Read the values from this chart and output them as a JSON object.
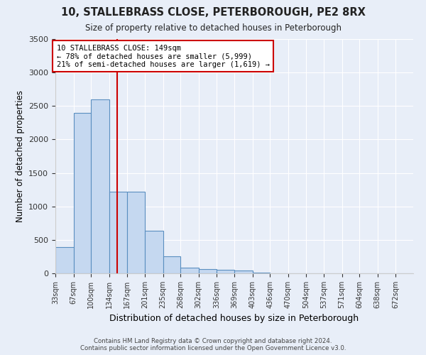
{
  "title": "10, STALLEBRASS CLOSE, PETERBOROUGH, PE2 8RX",
  "subtitle": "Size of property relative to detached houses in Peterborough",
  "xlabel": "Distribution of detached houses by size in Peterborough",
  "ylabel": "Number of detached properties",
  "footer_line1": "Contains HM Land Registry data © Crown copyright and database right 2024.",
  "footer_line2": "Contains public sector information licensed under the Open Government Licence v3.0.",
  "annotation_line1": "10 STALLEBRASS CLOSE: 149sqm",
  "annotation_line2": "← 78% of detached houses are smaller (5,999)",
  "annotation_line3": "21% of semi-detached houses are larger (1,619) →",
  "bar_edges": [
    33,
    67,
    100,
    134,
    167,
    201,
    235,
    268,
    302,
    336,
    369,
    403,
    436,
    470,
    504,
    537,
    571,
    604,
    638,
    672,
    705
  ],
  "bar_values": [
    390,
    2400,
    2600,
    1220,
    1220,
    640,
    250,
    90,
    60,
    55,
    40,
    15,
    0,
    0,
    0,
    0,
    0,
    0,
    0,
    0
  ],
  "bar_color": "#c5d8f0",
  "bar_edge_color": "#5a8fc0",
  "red_line_x": 149,
  "ylim": [
    0,
    3500
  ],
  "yticks": [
    0,
    500,
    1000,
    1500,
    2000,
    2500,
    3000,
    3500
  ],
  "bg_color": "#e8eef8",
  "plot_bg_color": "#e8eef8",
  "annotation_box_color": "#ffffff",
  "annotation_box_edge": "#cc0000",
  "red_line_color": "#cc0000",
  "grid_color": "#ffffff"
}
